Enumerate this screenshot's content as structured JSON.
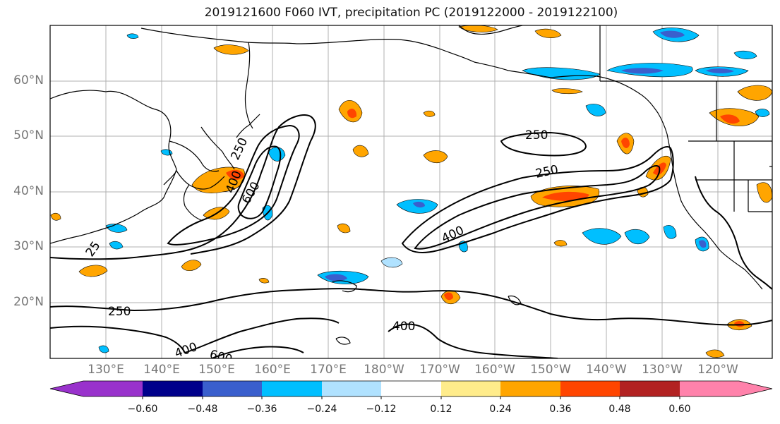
{
  "title": "2019121600 F060 IVT, precipitation PC (2019122000 - 2019122100)",
  "lat_labels": [
    "60°N",
    "50°N",
    "40°N",
    "30°N",
    "20°N"
  ],
  "lon_labels": [
    "130°E",
    "140°E",
    "150°E",
    "160°E",
    "170°E",
    "180°W",
    "170°W",
    "160°W",
    "150°W",
    "140°W",
    "130°W",
    "120°W"
  ],
  "colorbar": {
    "colors": [
      "#9932cc",
      "#00008b",
      "#3a5fcd",
      "#00bfff",
      "#b0e2ff",
      "#ffffff",
      "#ffec8b",
      "#ffa500",
      "#ff4500",
      "#b22222",
      "#ff82ab"
    ],
    "tick_labels": [
      "−0.60",
      "−0.48",
      "−0.36",
      "−0.24",
      "−0.12",
      "0.12",
      "0.24",
      "0.36",
      "0.48",
      "0.60"
    ]
  },
  "ivt_contour_labels": [
    "250",
    "250",
    "400",
    "600",
    "250",
    "400",
    "250",
    "400",
    "600",
    "400",
    "25"
  ]
}
